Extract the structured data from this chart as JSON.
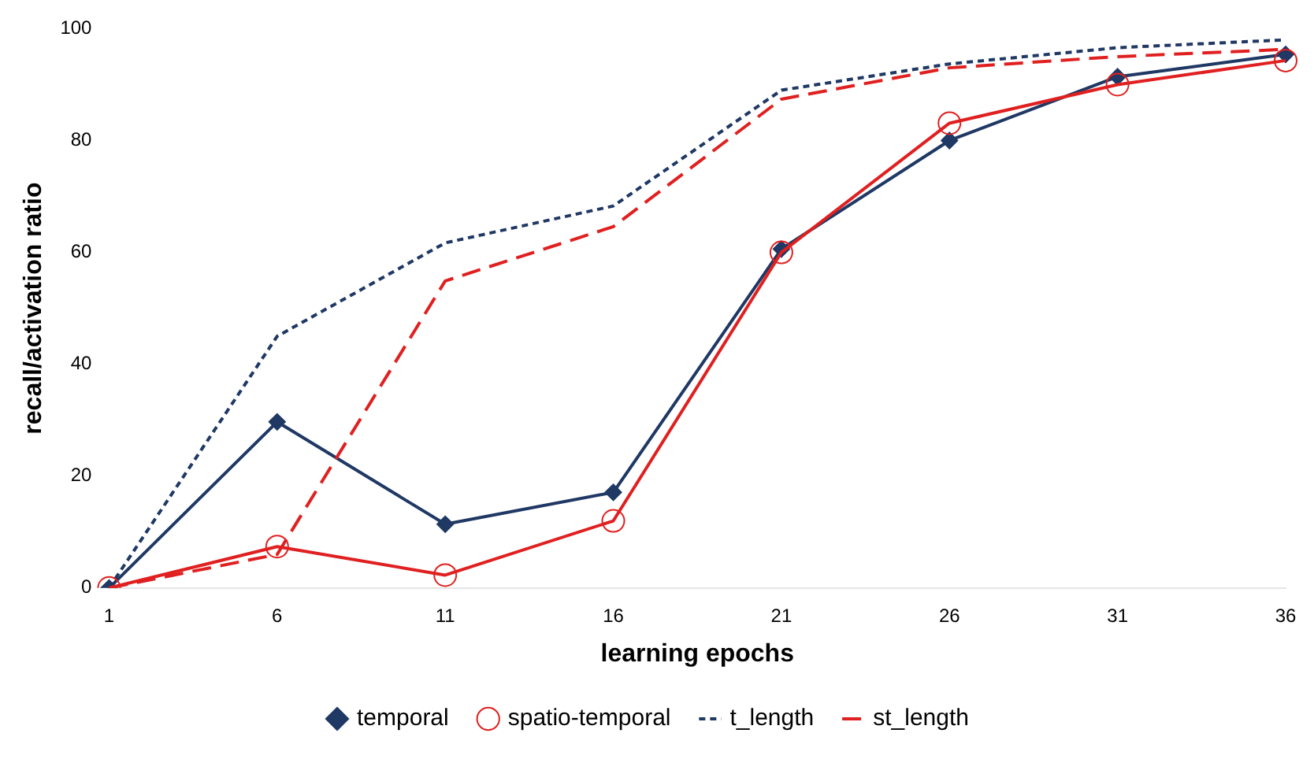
{
  "chart_data": {
    "type": "line",
    "xlabel": "learning epochs",
    "ylabel": "recall/activation ratio",
    "categories": [
      "1",
      "6",
      "11",
      "16",
      "21",
      "26",
      "31",
      "36"
    ],
    "ylim": [
      0,
      100
    ],
    "yticks": [
      0,
      20,
      40,
      60,
      80,
      100
    ],
    "legend": "bottom",
    "series": [
      {
        "name": "temporal",
        "color": "#1f3864",
        "marker": "diamond",
        "line_style": "solid",
        "values": [
          0,
          29.7,
          11.4,
          17.1,
          60.6,
          80,
          91.4,
          95.4
        ]
      },
      {
        "name": "spatio-temporal",
        "color": "#e02020",
        "marker": "circle",
        "line_style": "solid",
        "values": [
          0,
          7.4,
          2.3,
          12,
          60,
          83.1,
          90,
          94.3
        ]
      },
      {
        "name": "t_length",
        "color": "#1f3864",
        "marker": "none",
        "line_style": "dotted",
        "values": [
          0,
          45,
          61.7,
          68.3,
          89,
          93.7,
          96.6,
          98
        ]
      },
      {
        "name": "st_length",
        "color": "#e02020",
        "marker": "none",
        "line_style": "dashed",
        "values": [
          0,
          6,
          54.9,
          64.6,
          87.4,
          93,
          95,
          96.3
        ]
      }
    ]
  }
}
